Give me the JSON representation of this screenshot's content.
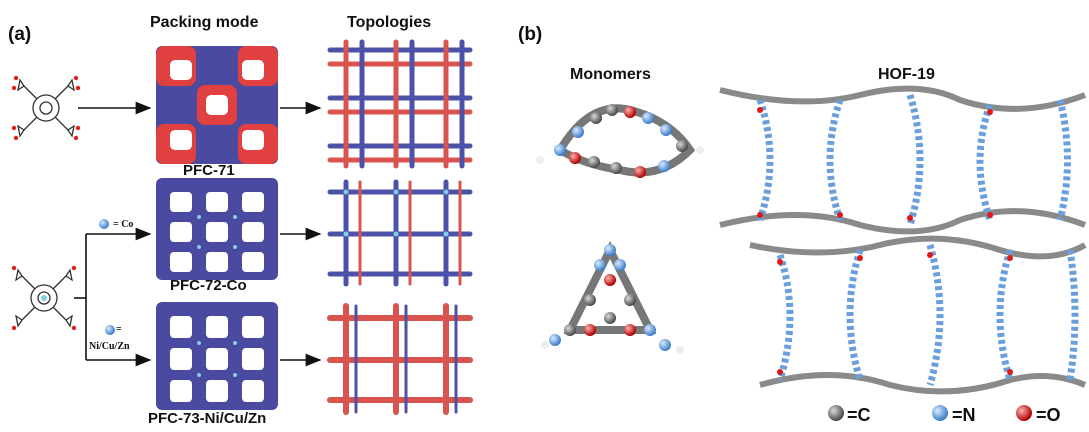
{
  "panel_a": {
    "label": "(a)",
    "packing_header": "Packing mode",
    "topologies_header": "Topologies",
    "frameworks": [
      {
        "name": "PFC-71"
      },
      {
        "name": "PFC-72-Co"
      },
      {
        "name": "PFC-73-Ni/Cu/Zn"
      }
    ],
    "metal_labels": {
      "co": "= Co",
      "ni_eq": "=",
      "ni_metals": "Ni/Cu/Zn"
    }
  },
  "panel_b": {
    "label": "(b)",
    "monomers_header": "Monomers",
    "hof_header": "HOF-19"
  },
  "legend": [
    {
      "symbol": "=C",
      "color": "#707070"
    },
    {
      "symbol": "=N",
      "color": "#6a9fdc"
    },
    {
      "symbol": "=O",
      "color": "#e01818"
    }
  ],
  "colors": {
    "framework_blue": "#4a4aa0",
    "framework_red": "#e04040",
    "topology_red": "#d9534f",
    "topology_blue": "#4d52a8",
    "metal_cyan": "#7fd0e6",
    "carbon": "#707070",
    "nitrogen": "#6a9fdc",
    "oxygen": "#e01818"
  }
}
